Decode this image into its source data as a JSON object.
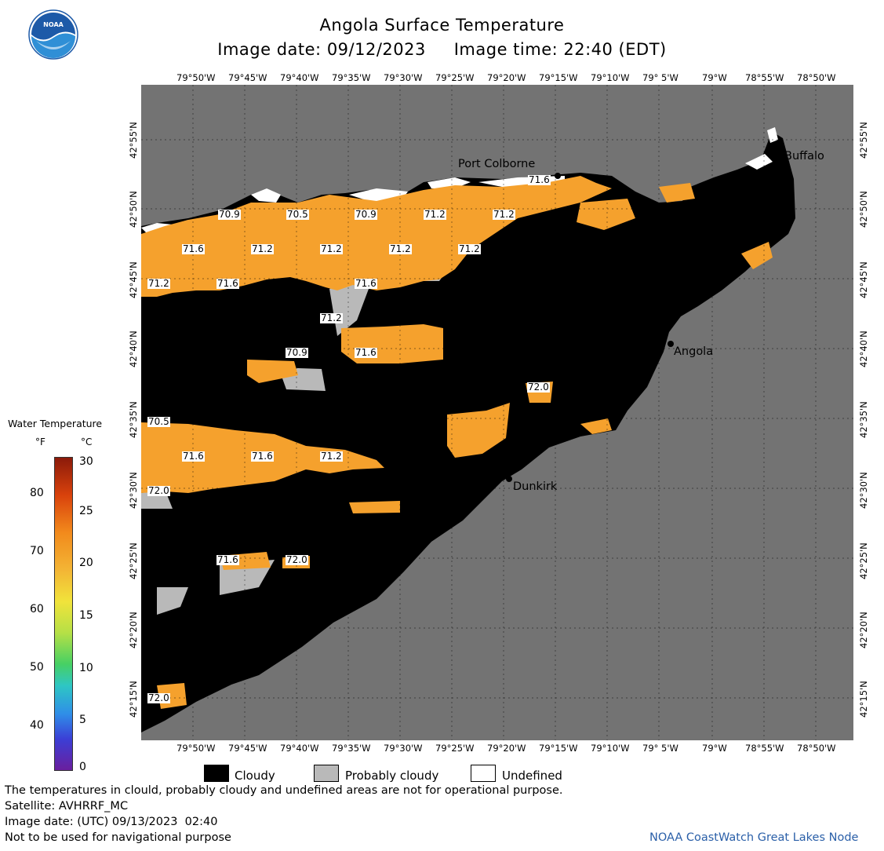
{
  "header": {
    "title": "Angola Surface Temperature",
    "subtitle": "Image date: 09/12/2023     Image time: 22:40 (EDT)",
    "logo_text": "NOAA"
  },
  "map": {
    "lon_ticks": [
      "79°50'W",
      "79°45'W",
      "79°40'W",
      "79°35'W",
      "79°30'W",
      "79°25'W",
      "79°20'W",
      "79°15'W",
      "79°10'W",
      "79° 5'W",
      "79°W",
      "78°55'W",
      "78°50'W"
    ],
    "lat_ticks": [
      "42°55'N",
      "42°50'N",
      "42°45'N",
      "42°40'N",
      "42°35'N",
      "42°30'N",
      "42°25'N",
      "42°20'N",
      "42°15'N"
    ],
    "cities": {
      "port_colborne": "Port Colborne",
      "buffalo": "Buffalo",
      "angola": "Angola",
      "dunkirk": "Dunkirk"
    },
    "temp_labels": [
      "71.6",
      "70.9",
      "70.5",
      "70.9",
      "71.2",
      "71.2",
      "71.6",
      "71.2",
      "71.2",
      "71.2",
      "71.2",
      "71.2",
      "71.6",
      "71.6",
      "71.2",
      "70.9",
      "71.6",
      "72.0",
      "70.5",
      "71.6",
      "71.6",
      "71.2",
      "72.0",
      "71.6",
      "72.0",
      "72.0"
    ],
    "colors": {
      "land": "#737373",
      "cloudy": "#000000",
      "probably_cloudy": "#b9b9b9",
      "undefined": "#ffffff",
      "water": "#f5a12d"
    }
  },
  "scale": {
    "title": "Water Temperature",
    "f_unit": "°F",
    "c_unit": "°C",
    "f_ticks": [
      "80",
      "70",
      "60",
      "50",
      "40"
    ],
    "c_ticks": [
      "30",
      "25",
      "20",
      "15",
      "10",
      "5",
      "0"
    ]
  },
  "legend": {
    "cloudy": "Cloudy",
    "probably_cloudy": "Probably cloudy",
    "undefined": "Undefined"
  },
  "footer": {
    "disclaimer": "The temperatures in clould, probably cloudy and undefined areas are not for operational purpose.",
    "satellite": "Satellite: AVHRRF_MC",
    "utc_date": "Image date: (UTC) 09/13/2023  02:40",
    "navigation": "Not to be used for navigational purpose",
    "credit": "NOAA CoastWatch Great Lakes Node"
  }
}
